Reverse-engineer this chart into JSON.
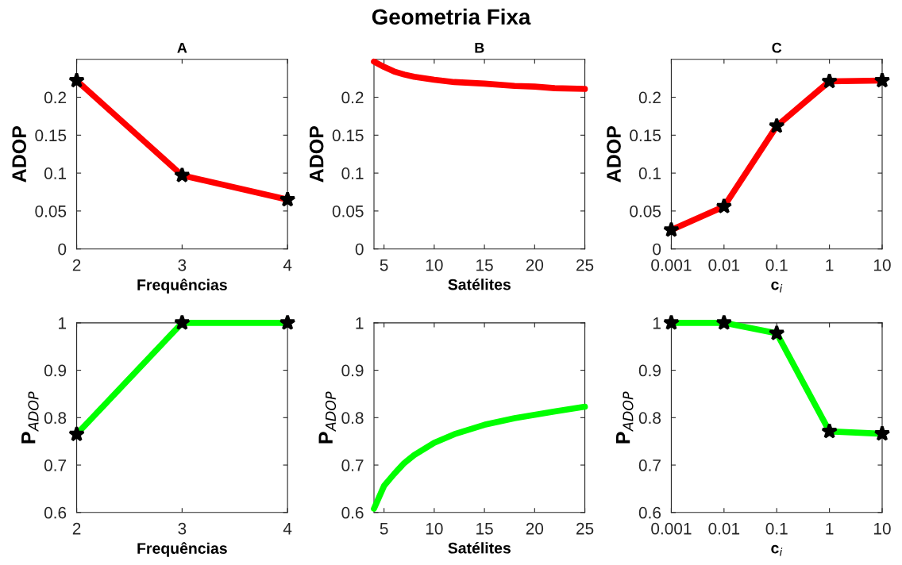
{
  "chart_data": [
    {
      "type": "line",
      "title": "A",
      "xlabel": "Frequências",
      "ylabel": "ADOP",
      "annotations": [
        "Geometria Fixa"
      ],
      "x": [
        2,
        3,
        4
      ],
      "xlim": [
        2,
        4
      ],
      "xticks": [
        2,
        3,
        4
      ],
      "ylim": [
        0,
        0.25
      ],
      "yticks": [
        0,
        0.05,
        0.1,
        0.15,
        0.2
      ],
      "marker": "star",
      "grid": false,
      "series": [
        {
          "color": "#ff0000",
          "values": [
            0.222,
            0.097,
            0.065
          ]
        }
      ]
    },
    {
      "type": "line",
      "title": "B",
      "xlabel": "Satélites",
      "ylabel": "ADOP",
      "x": [
        4,
        5,
        6,
        7,
        8,
        10,
        12,
        15,
        18,
        20,
        22,
        25
      ],
      "xlim": [
        4,
        25
      ],
      "xticks": [
        5,
        10,
        15,
        20,
        25
      ],
      "ylim": [
        0,
        0.25
      ],
      "yticks": [
        0,
        0.05,
        0.1,
        0.15,
        0.2
      ],
      "grid": false,
      "series": [
        {
          "color": "#ff0000",
          "values": [
            0.247,
            0.24,
            0.234,
            0.23,
            0.227,
            0.223,
            0.22,
            0.218,
            0.215,
            0.214,
            0.212,
            0.211
          ]
        }
      ]
    },
    {
      "type": "line",
      "title": "C",
      "xlabel": "c$_{i}$",
      "ylabel": "ADOP",
      "x": [
        0.001,
        0.01,
        0.1,
        1,
        10
      ],
      "log": "x",
      "xlim": [
        0.001,
        10
      ],
      "xticks": [
        0.001,
        0.01,
        0.1,
        1,
        10
      ],
      "ylim": [
        0,
        0.25
      ],
      "yticks": [
        0,
        0.05,
        0.1,
        0.15,
        0.2
      ],
      "marker": "star",
      "grid": false,
      "series": [
        {
          "color": "#ff0000",
          "values": [
            0.025,
            0.056,
            0.162,
            0.221,
            0.222
          ]
        }
      ]
    },
    {
      "type": "line",
      "xlabel": "Frequências",
      "ylabel": "P$_{ADOP}$",
      "x": [
        2,
        3,
        4
      ],
      "xlim": [
        2,
        4
      ],
      "xticks": [
        2,
        3,
        4
      ],
      "ylim": [
        0.6,
        1
      ],
      "yticks": [
        0.6,
        0.7,
        0.8,
        0.9,
        1
      ],
      "marker": "star",
      "grid": false,
      "series": [
        {
          "color": "#00ff00",
          "values": [
            0.765,
            1,
            1
          ]
        }
      ]
    },
    {
      "type": "line",
      "xlabel": "Satélites",
      "ylabel": "P$_{ADOP}$",
      "x": [
        4,
        5,
        6,
        7,
        8,
        10,
        12,
        15,
        18,
        20,
        22,
        25
      ],
      "xlim": [
        4,
        25
      ],
      "xticks": [
        5,
        10,
        15,
        20,
        25
      ],
      "ylim": [
        0.6,
        1
      ],
      "yticks": [
        0.6,
        0.7,
        0.8,
        0.9,
        1
      ],
      "grid": false,
      "series": [
        {
          "color": "#00ff00",
          "values": [
            0.608,
            0.656,
            0.681,
            0.704,
            0.721,
            0.747,
            0.765,
            0.785,
            0.799,
            0.806,
            0.813,
            0.823
          ]
        }
      ]
    },
    {
      "type": "line",
      "xlabel": "c$_{i}$",
      "ylabel": "P$_{ADOP}$",
      "x": [
        0.001,
        0.01,
        0.1,
        1,
        10
      ],
      "log": "x",
      "xlim": [
        0.001,
        10
      ],
      "xticks": [
        0.001,
        0.01,
        0.1,
        1,
        10
      ],
      "ylim": [
        0.6,
        1
      ],
      "yticks": [
        0.6,
        0.7,
        0.8,
        0.9,
        1
      ],
      "marker": "star",
      "grid": false,
      "series": [
        {
          "color": "#00ff00",
          "values": [
            1,
            1,
            0.978,
            0.771,
            0.766
          ]
        }
      ]
    }
  ]
}
